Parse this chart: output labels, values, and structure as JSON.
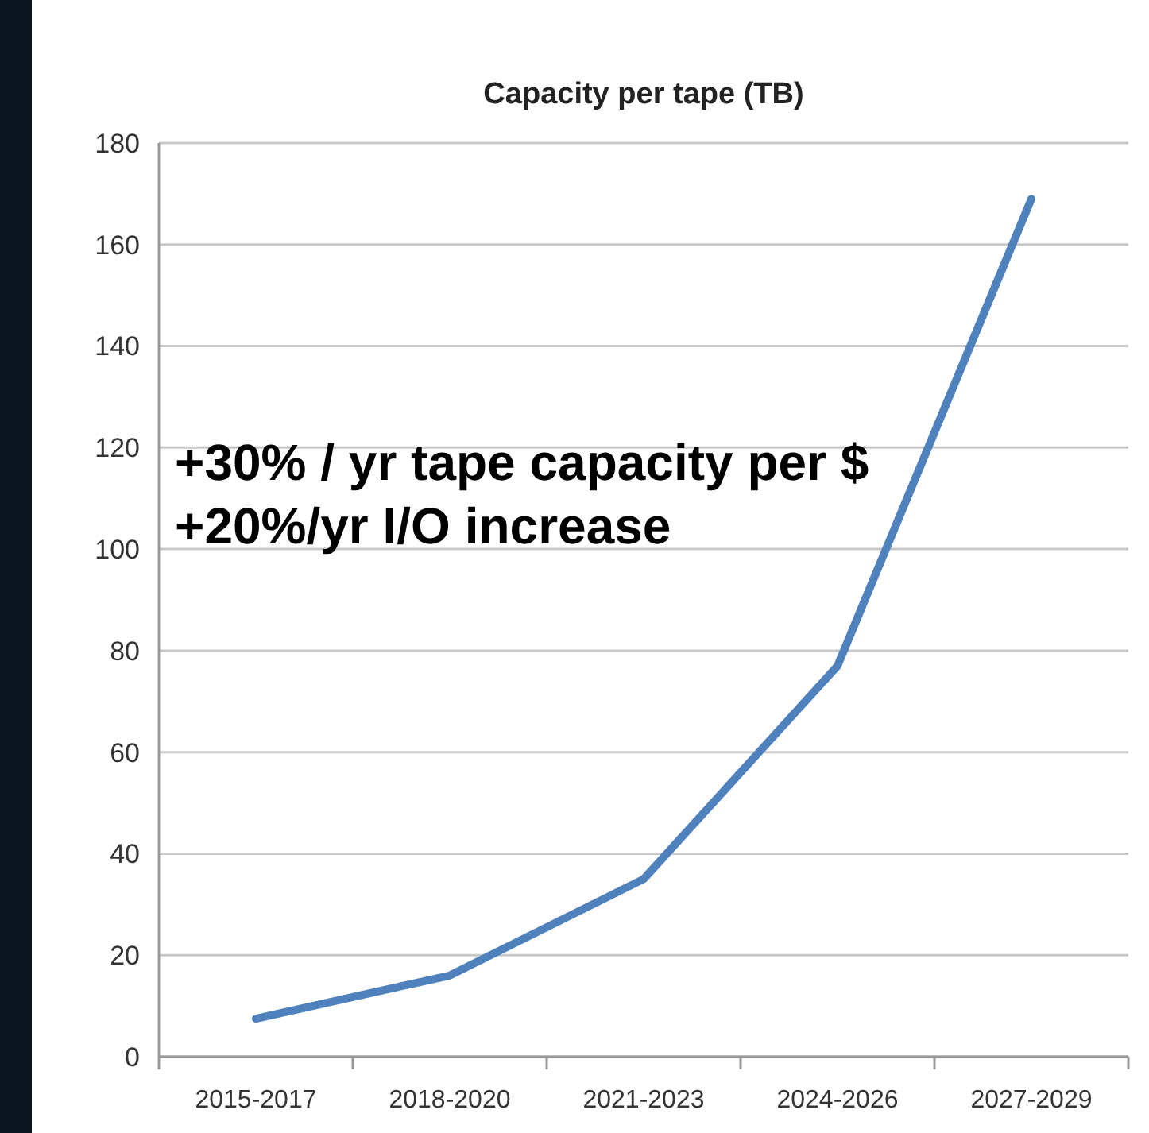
{
  "chart_data": {
    "type": "line",
    "title": "Capacity per tape (TB)",
    "categories": [
      "2015-2017",
      "2018-2020",
      "2021-2023",
      "2024-2026",
      "2027-2029"
    ],
    "series": [
      {
        "color": "#4f81bd",
        "values": [
          7.5,
          16,
          35,
          77,
          169
        ]
      }
    ],
    "ylim": [
      0,
      180
    ],
    "yticks": [
      0,
      20,
      40,
      60,
      80,
      100,
      120,
      140,
      160,
      180
    ],
    "grid": "y",
    "marker": "none",
    "line_style": "solid",
    "annotations": [
      "+30% / yr tape capacity per $",
      "+20%/yr I/O increase"
    ]
  }
}
